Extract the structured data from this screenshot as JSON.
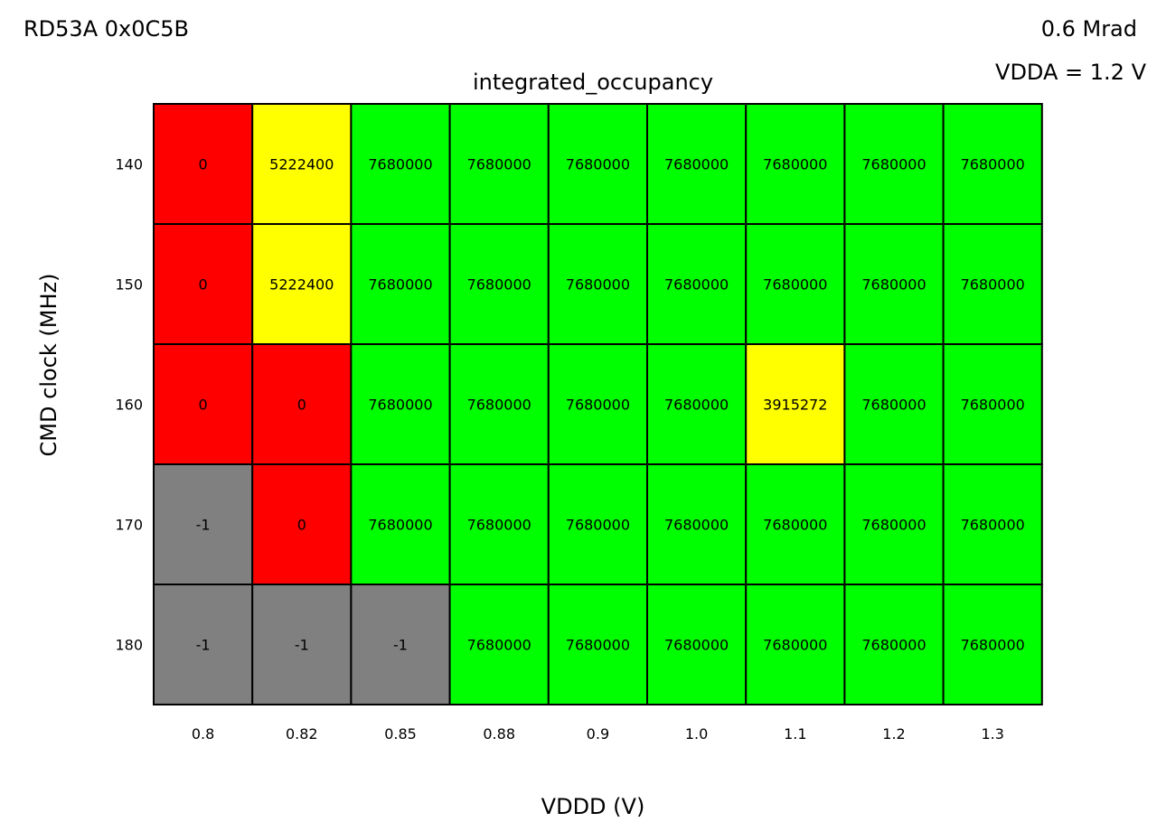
{
  "header": {
    "chip_label": "RD53A 0x0C5B",
    "dose_label": "0.6 Mrad",
    "vdda_label": "VDDA = 1.2 V"
  },
  "chart_data": {
    "type": "heatmap",
    "title": "integrated_occupancy",
    "xlabel": "VDDD (V)",
    "ylabel": "CMD clock (MHz)",
    "x_categories": [
      "0.8",
      "0.82",
      "0.85",
      "0.88",
      "0.9",
      "1.0",
      "1.1",
      "1.2",
      "1.3"
    ],
    "y_categories": [
      "140",
      "150",
      "160",
      "170",
      "180"
    ],
    "values": [
      [
        0,
        5222400,
        7680000,
        7680000,
        7680000,
        7680000,
        7680000,
        7680000,
        7680000
      ],
      [
        0,
        5222400,
        7680000,
        7680000,
        7680000,
        7680000,
        7680000,
        7680000,
        7680000
      ],
      [
        0,
        0,
        7680000,
        7680000,
        7680000,
        7680000,
        3915272,
        7680000,
        7680000
      ],
      [
        -1,
        0,
        7680000,
        7680000,
        7680000,
        7680000,
        7680000,
        7680000,
        7680000
      ],
      [
        -1,
        -1,
        -1,
        7680000,
        7680000,
        7680000,
        7680000,
        7680000,
        7680000
      ]
    ],
    "color_rules": {
      "missing": "#808080",
      "zero": "#ff0000",
      "partial": "#ffff00",
      "full": "#00ff00",
      "full_value": 7680000
    },
    "grid_color": "#000000"
  }
}
